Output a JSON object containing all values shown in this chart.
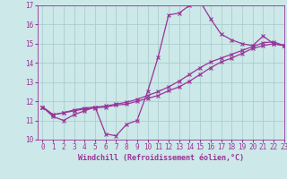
{
  "xlabel": "Windchill (Refroidissement éolien,°C)",
  "x_hours": [
    0,
    1,
    2,
    3,
    4,
    5,
    6,
    7,
    8,
    9,
    10,
    11,
    12,
    13,
    14,
    15,
    16,
    17,
    18,
    19,
    20,
    21,
    22,
    23
  ],
  "line1": [
    11.7,
    11.2,
    11.0,
    11.3,
    11.5,
    11.7,
    10.3,
    10.2,
    10.8,
    11.0,
    12.5,
    14.3,
    16.5,
    16.6,
    17.0,
    17.2,
    16.3,
    15.5,
    15.2,
    15.0,
    14.9,
    15.4,
    15.0,
    14.9
  ],
  "line2": [
    11.7,
    11.3,
    11.4,
    11.5,
    11.6,
    11.65,
    11.7,
    11.8,
    11.85,
    12.0,
    12.15,
    12.3,
    12.55,
    12.75,
    13.05,
    13.4,
    13.75,
    14.05,
    14.25,
    14.5,
    14.75,
    14.9,
    15.0,
    14.9
  ],
  "line3": [
    11.7,
    11.3,
    11.4,
    11.55,
    11.65,
    11.7,
    11.75,
    11.85,
    11.95,
    12.1,
    12.3,
    12.5,
    12.75,
    13.05,
    13.4,
    13.75,
    14.05,
    14.25,
    14.45,
    14.65,
    14.85,
    15.05,
    15.1,
    14.9
  ],
  "line_color": "#993399",
  "bg_color": "#cce8e8",
  "grid_color": "#aacece",
  "axis_color": "#993399",
  "xlim": [
    -0.5,
    23
  ],
  "ylim": [
    10,
    17
  ],
  "yticks": [
    10,
    11,
    12,
    13,
    14,
    15,
    16,
    17
  ],
  "xticks": [
    0,
    1,
    2,
    3,
    4,
    5,
    6,
    7,
    8,
    9,
    10,
    11,
    12,
    13,
    14,
    15,
    16,
    17,
    18,
    19,
    20,
    21,
    22,
    23
  ],
  "xlabel_fontsize": 6.0,
  "tick_fontsize": 5.5
}
